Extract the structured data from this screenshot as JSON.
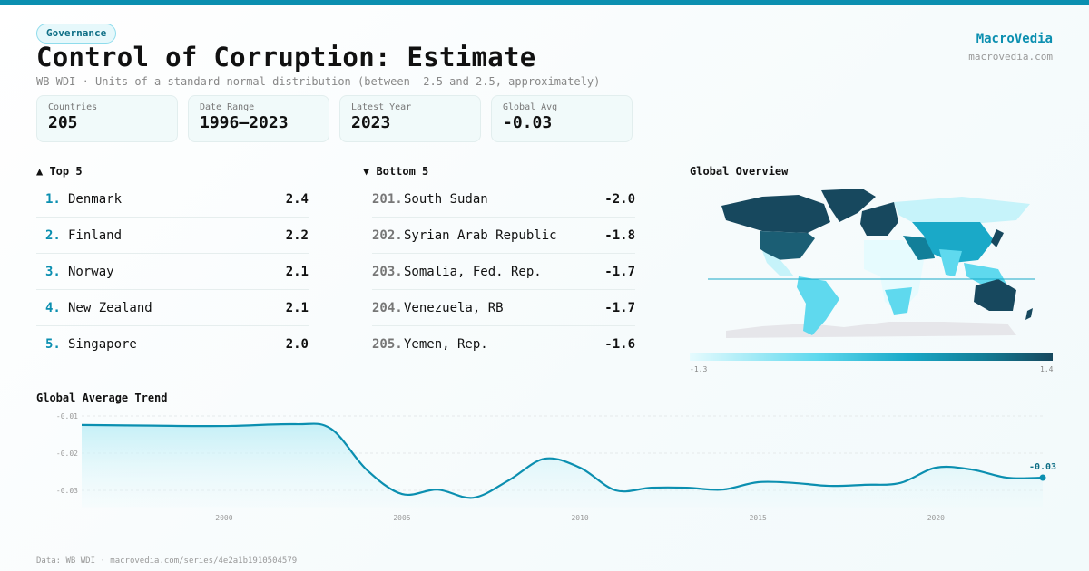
{
  "header": {
    "badge": "Governance",
    "title": "Control of Corruption: Estimate",
    "subtitle": "WB WDI · Units of a standard normal distribution (between -2.5 and 2.5, approximately)",
    "brand": "MacroVedia",
    "brand_url": "macrovedia.com"
  },
  "stats": [
    {
      "label": "Countries",
      "value": "205"
    },
    {
      "label": "Date Range",
      "value": "1996–2023"
    },
    {
      "label": "Latest Year",
      "value": "2023"
    },
    {
      "label": "Global Avg",
      "value": "-0.03"
    }
  ],
  "top5": {
    "title": "▲ Top 5",
    "items": [
      {
        "rank": "1.",
        "name": "Denmark",
        "value": "2.4"
      },
      {
        "rank": "2.",
        "name": "Finland",
        "value": "2.2"
      },
      {
        "rank": "3.",
        "name": "Norway",
        "value": "2.1"
      },
      {
        "rank": "4.",
        "name": "New Zealand",
        "value": "2.1"
      },
      {
        "rank": "5.",
        "name": "Singapore",
        "value": "2.0"
      }
    ]
  },
  "bottom5": {
    "title": "▼ Bottom 5",
    "items": [
      {
        "rank": "201.",
        "name": "South Sudan",
        "value": "-2.0"
      },
      {
        "rank": "202.",
        "name": "Syrian Arab Republic",
        "value": "-1.8"
      },
      {
        "rank": "203.",
        "name": "Somalia, Fed. Rep.",
        "value": "-1.7"
      },
      {
        "rank": "204.",
        "name": "Venezuela, RB",
        "value": "-1.7"
      },
      {
        "rank": "205.",
        "name": "Yemen, Rep.",
        "value": "-1.6"
      }
    ]
  },
  "map": {
    "title": "Global Overview",
    "legend_min": "-1.3",
    "legend_max": "1.4",
    "colors": [
      "#e6fbfe",
      "#5fd9ee",
      "#1aa9c8",
      "#127f99",
      "#17485e"
    ]
  },
  "chart_data": {
    "type": "area",
    "title": "Global Average Trend",
    "x": [
      1996,
      1998,
      2000,
      2002,
      2003,
      2004,
      2005,
      2006,
      2007,
      2008,
      2009,
      2010,
      2011,
      2012,
      2013,
      2014,
      2015,
      2016,
      2017,
      2018,
      2019,
      2020,
      2021,
      2022,
      2023
    ],
    "values": [
      -0.0124,
      -0.0126,
      -0.0127,
      -0.0122,
      -0.0134,
      -0.0244,
      -0.031,
      -0.0298,
      -0.032,
      -0.0273,
      -0.0215,
      -0.0239,
      -0.03,
      -0.0293,
      -0.0293,
      -0.0298,
      -0.0278,
      -0.028,
      -0.0288,
      -0.0285,
      -0.028,
      -0.0239,
      -0.0244,
      -0.0266,
      -0.0266
    ],
    "yticks": [
      "-0.01",
      "-0.02",
      "-0.03"
    ],
    "xticks": [
      "2000",
      "2005",
      "2010",
      "2015",
      "2020"
    ],
    "last_label": "-0.03",
    "grid": true,
    "color": "#0b8fb0"
  },
  "footer": "Data: WB WDI · macrovedia.com/series/4e2a1b1910504579"
}
